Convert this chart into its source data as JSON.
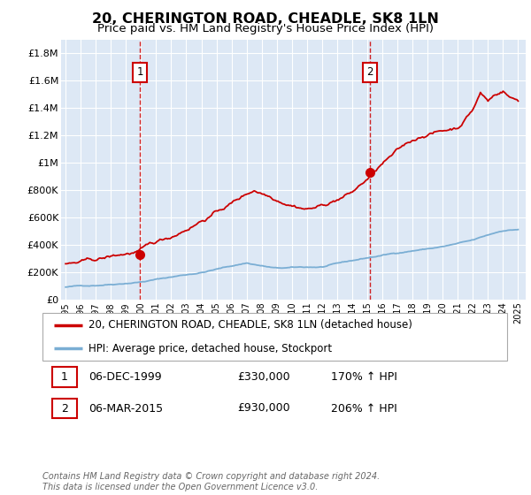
{
  "title": "20, CHERINGTON ROAD, CHEADLE, SK8 1LN",
  "subtitle": "Price paid vs. HM Land Registry's House Price Index (HPI)",
  "title_fontsize": 11.5,
  "subtitle_fontsize": 9.5,
  "ylabel_ticks": [
    "£0",
    "£200K",
    "£400K",
    "£600K",
    "£800K",
    "£1M",
    "£1.2M",
    "£1.4M",
    "£1.6M",
    "£1.8M"
  ],
  "ylabel_values": [
    0,
    200000,
    400000,
    600000,
    800000,
    1000000,
    1200000,
    1400000,
    1600000,
    1800000
  ],
  "ylim": [
    0,
    1900000
  ],
  "xlim_start": 1994.7,
  "xlim_end": 2025.5,
  "x_ticks": [
    1995,
    1996,
    1997,
    1998,
    1999,
    2000,
    2001,
    2002,
    2003,
    2004,
    2005,
    2006,
    2007,
    2008,
    2009,
    2010,
    2011,
    2012,
    2013,
    2014,
    2015,
    2016,
    2017,
    2018,
    2019,
    2020,
    2021,
    2022,
    2023,
    2024,
    2025
  ],
  "sale1_x": 1999.92,
  "sale1_y": 330000,
  "sale1_label": "1",
  "sale1_date": "06-DEC-1999",
  "sale1_price": "£330,000",
  "sale1_hpi": "170% ↑ HPI",
  "sale2_x": 2015.17,
  "sale2_y": 930000,
  "sale2_label": "2",
  "sale2_date": "06-MAR-2015",
  "sale2_price": "£930,000",
  "sale2_hpi": "206% ↑ HPI",
  "red_line_color": "#cc0000",
  "blue_line_color": "#7aaed4",
  "bg_color": "#dde8f5",
  "grid_color": "#ffffff",
  "legend1_label": "20, CHERINGTON ROAD, CHEADLE, SK8 1LN (detached house)",
  "legend2_label": "HPI: Average price, detached house, Stockport",
  "footer": "Contains HM Land Registry data © Crown copyright and database right 2024.\nThis data is licensed under the Open Government Licence v3.0.",
  "marker_box_color": "#cc0000"
}
